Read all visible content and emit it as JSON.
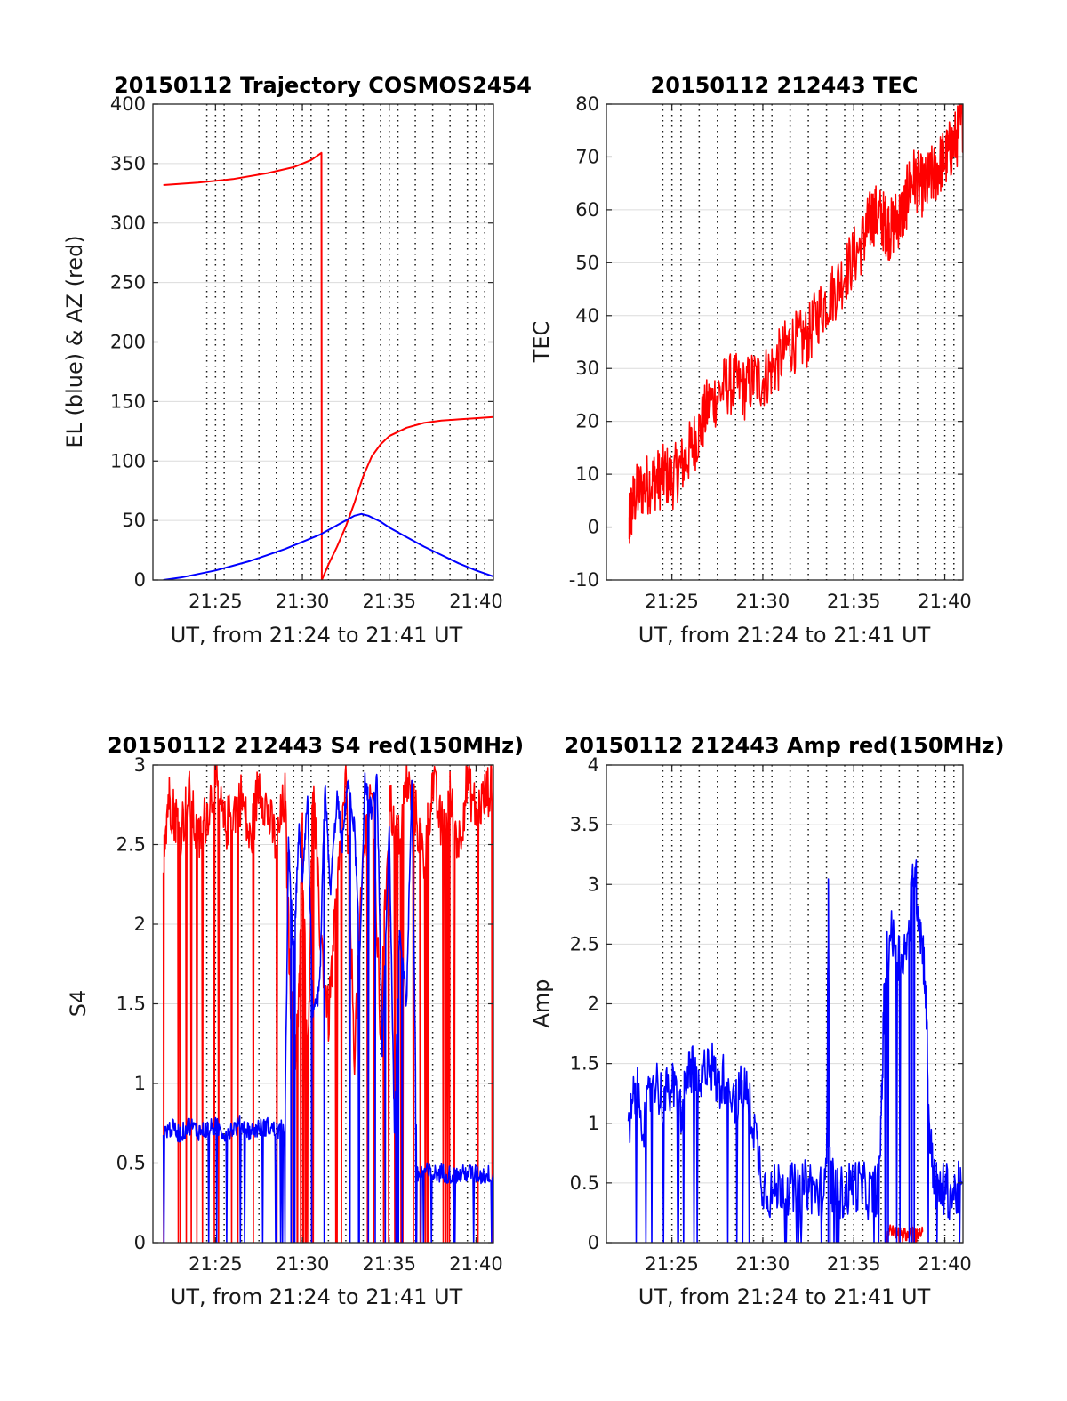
{
  "figure": {
    "background": "#ffffff"
  },
  "colors": {
    "red": "#ff0000",
    "blue": "#0000ff",
    "axis": "#262626"
  },
  "chart_data": [
    {
      "type": "line",
      "title": "20150112 Trajectory COSMOS2454",
      "xlabel": "UT, from 21:24 to 21:41 UT",
      "ylabel": "EL (blue) & AZ (red)",
      "xlim": [
        21.4,
        41
      ],
      "ylim": [
        0,
        400
      ],
      "xticks": [
        25,
        30,
        35,
        40
      ],
      "xticklabels": [
        "21:25",
        "21:30",
        "21:35",
        "21:40"
      ],
      "yticks": [
        0,
        50,
        100,
        150,
        200,
        250,
        300,
        350,
        400
      ],
      "yticklabels": [
        "0",
        "50",
        "100",
        "150",
        "200",
        "250",
        "300",
        "350",
        "400"
      ],
      "xgrid_minor": [
        24.5,
        25.5,
        26.5,
        27.5,
        28.5,
        29.5,
        30.5,
        31.5,
        32.5,
        33.5,
        34.5,
        35.5,
        36.5,
        37.5,
        38.5,
        39.5,
        40.5
      ],
      "series": [
        {
          "color": "#ff0000",
          "noise": 0,
          "x": [
            22.0,
            24.0,
            26.0,
            28.0,
            29.5,
            30.5,
            31.1,
            31.12,
            31.5,
            32.0,
            32.5,
            33.0,
            33.5,
            34.0,
            34.5,
            35.0,
            36.0,
            37.0,
            38.0,
            39.0,
            40.0,
            41.0
          ],
          "y": [
            332,
            334,
            337,
            342,
            347,
            353,
            359,
            0,
            13,
            28,
            45,
            65,
            87,
            104,
            114,
            121,
            128,
            132,
            134,
            135,
            136,
            137
          ]
        },
        {
          "color": "#0000ff",
          "noise": 0,
          "x": [
            22.0,
            23.0,
            24.0,
            25.0,
            26.0,
            27.0,
            28.0,
            29.0,
            30.0,
            31.0,
            32.0,
            32.5,
            33.0,
            33.4,
            33.8,
            34.5,
            35.0,
            36.0,
            37.0,
            38.0,
            39.0,
            40.0,
            41.0
          ],
          "y": [
            0,
            2,
            5,
            8,
            12,
            16,
            21,
            26,
            32,
            38,
            46,
            50,
            54,
            55.5,
            54,
            49,
            44,
            36,
            28,
            21,
            14,
            8,
            3
          ]
        }
      ]
    },
    {
      "type": "line",
      "title": "20150112 212443 TEC",
      "xlabel": "UT, from 21:24 to 21:41 UT",
      "ylabel": "TEC",
      "xlim": [
        21.4,
        41
      ],
      "ylim": [
        -10,
        80
      ],
      "xticks": [
        25,
        30,
        35,
        40
      ],
      "xticklabels": [
        "21:25",
        "21:30",
        "21:35",
        "21:40"
      ],
      "yticks": [
        -10,
        0,
        10,
        20,
        30,
        40,
        50,
        60,
        70,
        80
      ],
      "yticklabels": [
        "-10",
        "0",
        "10",
        "20",
        "30",
        "40",
        "50",
        "60",
        "70",
        "80"
      ],
      "xgrid_minor": [
        24.5,
        25.5,
        26.5,
        27.5,
        28.5,
        29.5,
        30.5,
        31.5,
        32.5,
        33.5,
        34.5,
        35.5,
        36.5,
        37.5,
        38.5,
        39.5,
        40.5
      ],
      "series": [
        {
          "color": "#ff0000",
          "noise": 0.4,
          "x": [
            22.65,
            22.7,
            22.9,
            23.2,
            23.6,
            24.0,
            24.3,
            24.6,
            25.0,
            25.4,
            25.8,
            26.2,
            26.6,
            27.0,
            27.5,
            28.0,
            28.5,
            29.0,
            29.5,
            30.0,
            30.5,
            31.0,
            31.5,
            32.0,
            32.5,
            33.0,
            33.5,
            34.0,
            34.5,
            35.0,
            35.5,
            35.8,
            36.0,
            36.3,
            36.6,
            36.8,
            37.0,
            37.3,
            37.6,
            37.8,
            38.0,
            38.3,
            38.6,
            38.9,
            39.2,
            39.5,
            39.8,
            40.1,
            40.4,
            40.7,
            41.0
          ],
          "y": [
            0,
            2,
            5,
            7,
            8,
            9,
            9,
            10,
            9,
            11,
            13,
            16,
            19,
            23,
            25,
            27,
            27,
            26,
            28,
            28,
            30,
            32,
            35,
            35,
            36,
            40,
            43,
            45,
            48,
            51,
            54,
            57,
            59,
            59,
            58,
            57,
            56,
            58,
            59,
            60,
            64,
            66,
            65,
            64,
            66,
            67,
            69,
            70,
            72,
            74,
            77
          ]
        }
      ]
    },
    {
      "type": "line",
      "title": "20150112 212443 S4 red(150MHz)",
      "xlabel": "UT, from 21:24 to 21:41 UT",
      "ylabel": "S4",
      "xlim": [
        21.4,
        41
      ],
      "ylim": [
        0,
        3
      ],
      "xticks": [
        25,
        30,
        35,
        40
      ],
      "xticklabels": [
        "21:25",
        "21:30",
        "21:35",
        "21:40"
      ],
      "yticks": [
        0,
        0.5,
        1,
        1.5,
        2,
        2.5,
        3
      ],
      "yticklabels": [
        "0",
        "0.5",
        "1",
        "1.5",
        "2",
        "2.5",
        "3"
      ],
      "xgrid_minor": [
        24.5,
        25.5,
        26.5,
        27.5,
        28.5,
        29.5,
        30.5,
        31.5,
        32.5,
        33.5,
        34.5,
        35.5,
        36.5,
        37.5,
        38.5,
        39.5,
        40.5
      ],
      "series": [
        {
          "color": "#ff0000",
          "noise": 0.35,
          "x": [
            22.0,
            22.3,
            22.6,
            23.0,
            23.5,
            24.0,
            24.5,
            25.0,
            25.5,
            26.0,
            26.5,
            27.0,
            27.5,
            28.0,
            28.5,
            29.0,
            29.3,
            29.6,
            29.8,
            30.0,
            30.3,
            30.6,
            31.0,
            31.5,
            32.0,
            32.5,
            33.0,
            33.5,
            34.0,
            34.5,
            35.0,
            35.5,
            36.0,
            36.5,
            37.0,
            37.5,
            38.0,
            38.5,
            39.0,
            39.5,
            40.0,
            40.5,
            41.0
          ],
          "y": [
            2.5,
            2.8,
            2.7,
            2.6,
            2.8,
            2.5,
            2.7,
            2.9,
            2.6,
            2.7,
            2.8,
            2.5,
            2.9,
            2.7,
            2.5,
            2.8,
            1.6,
            1.2,
            1.5,
            2.6,
            1.0,
            2.9,
            2.0,
            1.4,
            2.2,
            2.9,
            1.2,
            2.4,
            2.9,
            1.3,
            2.8,
            2.5,
            2.9,
            2.7,
            2.4,
            2.9,
            2.6,
            2.8,
            2.5,
            2.9,
            2.7,
            2.8,
            2.9
          ]
        },
        {
          "color": "#0000ff",
          "noise": 0.12,
          "x": [
            22.0,
            22.5,
            23.0,
            23.5,
            24.0,
            24.5,
            25.0,
            25.5,
            26.0,
            26.5,
            27.0,
            27.5,
            28.0,
            28.5,
            29.0,
            29.2,
            29.5,
            29.8,
            30.0,
            30.3,
            30.6,
            31.0,
            31.3,
            31.6,
            32.0,
            32.3,
            32.6,
            33.0,
            33.3,
            33.6,
            34.0,
            34.3,
            34.6,
            35.0,
            35.3,
            35.6,
            36.0,
            36.3,
            36.6,
            37.0,
            37.5,
            38.0,
            38.5,
            39.0,
            39.5,
            40.0,
            40.5,
            41.0
          ],
          "y": [
            0.7,
            0.72,
            0.68,
            0.74,
            0.7,
            0.71,
            0.73,
            0.69,
            0.72,
            0.74,
            0.7,
            0.72,
            0.73,
            0.7,
            0.72,
            2.5,
            1.8,
            2.6,
            2.3,
            2.8,
            1.4,
            1.6,
            2.9,
            2.2,
            2.8,
            2.5,
            2.9,
            2.6,
            1.8,
            2.9,
            2.7,
            2.9,
            1.2,
            2.6,
            0.7,
            2.0,
            1.5,
            2.9,
            0.42,
            0.45,
            0.43,
            0.44,
            0.43,
            0.42,
            0.44,
            0.43,
            0.42,
            0.44
          ]
        }
      ]
    },
    {
      "type": "line",
      "title": "20150112 212443 Amp red(150MHz)",
      "xlabel": "UT, from 21:24 to 21:41 UT",
      "ylabel": "Amp",
      "xlim": [
        21.4,
        41
      ],
      "ylim": [
        0,
        4
      ],
      "xticks": [
        25,
        30,
        35,
        40
      ],
      "xticklabels": [
        "21:25",
        "21:30",
        "21:35",
        "21:40"
      ],
      "yticks": [
        0,
        0.5,
        1,
        1.5,
        2,
        2.5,
        3,
        3.5,
        4
      ],
      "yticklabels": [
        "0",
        "0.5",
        "1",
        "1.5",
        "2",
        "2.5",
        "3",
        "3.5",
        "4"
      ],
      "xgrid_minor": [
        24.5,
        25.5,
        26.5,
        27.5,
        28.5,
        29.5,
        30.5,
        31.5,
        32.5,
        33.5,
        34.5,
        35.5,
        36.5,
        37.5,
        38.5,
        39.5,
        40.5
      ],
      "series": [
        {
          "color": "#ff0000",
          "noise": 0.07,
          "x": [
            36.8,
            37.0,
            37.3,
            37.6,
            37.9,
            38.2,
            38.5,
            38.8
          ],
          "y": [
            0.05,
            0.12,
            0.08,
            0.1,
            0.06,
            0.11,
            0.07,
            0.09
          ]
        },
        {
          "color": "#0000ff",
          "noise": 0.35,
          "x": [
            22.6,
            23.0,
            23.5,
            24.0,
            24.5,
            25.0,
            25.5,
            26.0,
            26.5,
            27.0,
            27.5,
            28.0,
            28.5,
            29.0,
            29.5,
            30.0,
            30.5,
            31.0,
            31.5,
            32.0,
            32.5,
            33.0,
            33.5,
            33.6,
            33.7,
            34.0,
            34.5,
            35.0,
            35.5,
            36.0,
            36.4,
            36.7,
            37.0,
            37.5,
            38.0,
            38.3,
            38.6,
            38.9,
            39.2,
            39.6,
            40.0,
            40.5,
            41.0
          ],
          "y": [
            0.9,
            1.3,
            1.0,
            1.4,
            1.2,
            1.3,
            1.1,
            1.5,
            1.2,
            1.6,
            1.3,
            1.4,
            1.2,
            1.3,
            1.0,
            0.5,
            0.4,
            0.5,
            0.45,
            0.4,
            0.5,
            0.4,
            0.5,
            2.95,
            0.5,
            0.45,
            0.4,
            0.5,
            0.45,
            0.4,
            0.5,
            2.2,
            2.6,
            2.4,
            2.5,
            3.2,
            2.7,
            2.3,
            0.8,
            0.4,
            0.45,
            0.4,
            0.5
          ]
        }
      ]
    }
  ]
}
